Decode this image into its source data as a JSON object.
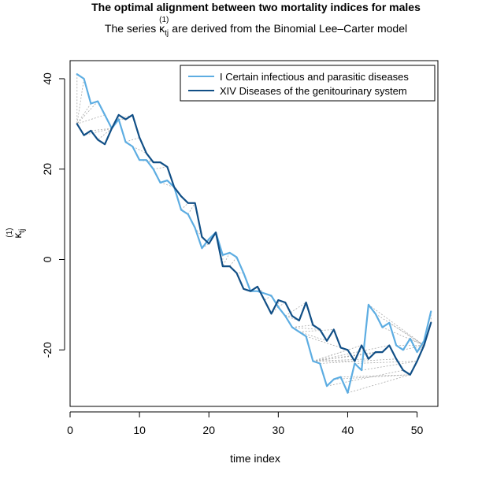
{
  "chart_data": {
    "type": "line",
    "title": "The optimal alignment between two mortality indices for males",
    "subtitle": {
      "prefix": "The series ",
      "kappa": "κ",
      "subscript": "tj",
      "superscript": "(1)",
      "suffix": " are derived from the Binomial Lee–Carter model"
    },
    "xlabel": "time index",
    "ylabel": {
      "kappa": "κ",
      "subscript": "tj",
      "superscript": "(1)"
    },
    "xlim": [
      0,
      53
    ],
    "ylim": [
      -32.5,
      44
    ],
    "x_ticks": [
      0,
      10,
      20,
      30,
      40,
      50
    ],
    "y_ticks": [
      -20,
      0,
      20,
      40
    ],
    "grid": false,
    "legend_position": "top-right",
    "series": [
      {
        "name": "I Certain infectious and parasitic diseases",
        "color": "#5dade2",
        "x": [
          1,
          2,
          3,
          4,
          5,
          6,
          7,
          8,
          9,
          10,
          11,
          12,
          13,
          14,
          15,
          16,
          17,
          18,
          19,
          20,
          21,
          22,
          23,
          24,
          25,
          26,
          27,
          28,
          29,
          30,
          31,
          32,
          33,
          34,
          35,
          36,
          37,
          38,
          39,
          40,
          41,
          42,
          43,
          44,
          45,
          46,
          47,
          48,
          49,
          50,
          51,
          52
        ],
        "values": [
          41,
          40,
          34.5,
          35,
          32,
          29,
          31,
          26,
          25,
          22,
          22,
          20,
          17,
          17.5,
          16,
          11,
          10,
          7,
          2.5,
          4.5,
          6,
          1,
          1.5,
          0.5,
          -3,
          -7,
          -7,
          -7.5,
          -8,
          -10.5,
          -12.5,
          -15,
          -16,
          -17,
          -22.5,
          -23,
          -28,
          -26.5,
          -26,
          -29.5,
          -23,
          -24.5,
          -10,
          -12,
          -15,
          -14,
          -19,
          -20,
          -17.5,
          -20.5,
          -18,
          -11.5
        ]
      },
      {
        "name": "XIV Diseases of the genitourinary system",
        "color": "#114f86",
        "x": [
          1,
          2,
          3,
          4,
          5,
          6,
          7,
          8,
          9,
          10,
          11,
          12,
          13,
          14,
          15,
          16,
          17,
          18,
          19,
          20,
          21,
          22,
          23,
          24,
          25,
          26,
          27,
          28,
          29,
          30,
          31,
          32,
          33,
          34,
          35,
          36,
          37,
          38,
          39,
          40,
          41,
          42,
          43,
          44,
          45,
          46,
          47,
          48,
          49,
          50,
          51,
          52
        ],
        "values": [
          30,
          27.5,
          28.5,
          26.5,
          25.5,
          29,
          32,
          31,
          32,
          27,
          23.5,
          21.5,
          21.5,
          20.5,
          16,
          14,
          12.5,
          12.5,
          5,
          3.5,
          6,
          -1.5,
          -1.5,
          -3,
          -6.5,
          -7,
          -6,
          -9,
          -12,
          -9,
          -9.5,
          -12.5,
          -13.5,
          -9.5,
          -14.5,
          -15.5,
          -18,
          -15.5,
          -19.5,
          -20,
          -22.5,
          -19,
          -22,
          -20.5,
          -20.5,
          -19,
          -22,
          -24.5,
          -25.5,
          -22.5,
          -19,
          -14
        ]
      }
    ],
    "alignment_color": "#aaaaaa"
  }
}
